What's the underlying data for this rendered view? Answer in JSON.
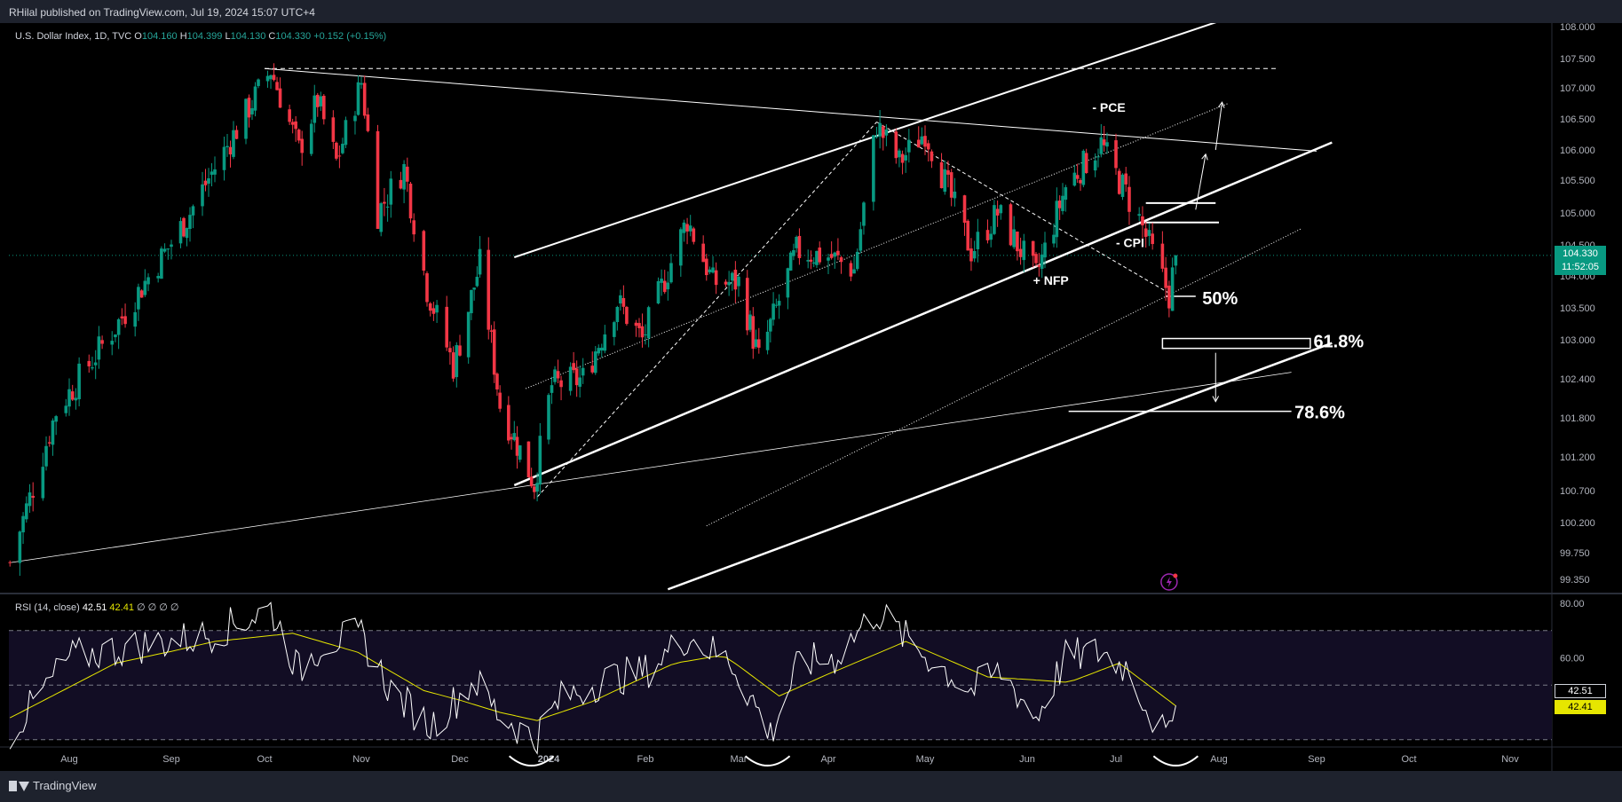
{
  "header": {
    "publisher": "RHilal published on TradingView.com, Jul 19, 2024 15:07 UTC+4"
  },
  "footer": {
    "brand": "TradingView"
  },
  "legend": {
    "symbol": "U.S. Dollar Index, 1D, TVC",
    "open_label": "O",
    "open": "104.160",
    "high_label": "H",
    "high": "104.399",
    "low_label": "L",
    "low": "104.130",
    "close_label": "C",
    "close": "104.330",
    "change": "+0.152 (+0.15%)"
  },
  "price_badge": {
    "price": "104.330",
    "countdown": "11:52:05"
  },
  "rsi_legend": {
    "name": "RSI (14, close)",
    "rsi": "42.51",
    "ma": "42.41",
    "extras": "∅ ∅ ∅ ∅"
  },
  "rsi_badges": {
    "rsi": "42.51",
    "ma": "42.41"
  },
  "annotations": {
    "pce": "- PCE",
    "cpi": "- CPI",
    "nfp": "+ NFP",
    "fib50": "50%",
    "fib618": "61.8%",
    "fib786": "78.6%"
  },
  "colors": {
    "up": "#089981",
    "down": "#f23645",
    "rsi": "#ffffff",
    "rsi_ma": "#e6e600",
    "background": "#000000",
    "panel": "#1e222d"
  },
  "chart_data": [
    {
      "type": "candlestick",
      "title": "U.S. Dollar Index, 1D, TVC",
      "x_ticks": [
        "Aug",
        "Sep",
        "Oct",
        "Nov",
        "Dec",
        "2024",
        "Feb",
        "Mar",
        "Apr",
        "May",
        "Jun",
        "Jul",
        "Aug",
        "Sep",
        "Oct",
        "Nov"
      ],
      "y_ticks": [
        "108.000",
        "107.500",
        "107.000",
        "106.500",
        "106.000",
        "105.500",
        "105.000",
        "104.500",
        "104.000",
        "103.500",
        "103.000",
        "102.400",
        "101.800",
        "101.200",
        "100.700",
        "100.200",
        "99.750",
        "99.350"
      ],
      "ylim": [
        99.2,
        108.0
      ],
      "last_price": 104.33,
      "pivots": [
        {
          "date": "2023-07-14",
          "value": 99.6
        },
        {
          "date": "2023-07-28",
          "value": 101.9
        },
        {
          "date": "2023-08-15",
          "value": 103.2
        },
        {
          "date": "2023-09-07",
          "value": 105.0
        },
        {
          "date": "2023-10-03",
          "value": 107.3
        },
        {
          "date": "2023-10-12",
          "value": 106.0
        },
        {
          "date": "2023-10-18",
          "value": 106.8
        },
        {
          "date": "2023-10-24",
          "value": 105.8
        },
        {
          "date": "2023-11-01",
          "value": 107.1
        },
        {
          "date": "2023-11-06",
          "value": 105.0
        },
        {
          "date": "2023-11-14",
          "value": 105.7
        },
        {
          "date": "2023-11-21",
          "value": 103.8
        },
        {
          "date": "2023-11-29",
          "value": 102.6
        },
        {
          "date": "2023-12-08",
          "value": 104.2
        },
        {
          "date": "2023-12-15",
          "value": 102.0
        },
        {
          "date": "2023-12-27",
          "value": 100.8
        },
        {
          "date": "2024-01-02",
          "value": 102.3
        },
        {
          "date": "2024-01-12",
          "value": 102.4
        },
        {
          "date": "2024-01-23",
          "value": 103.6
        },
        {
          "date": "2024-01-31",
          "value": 103.0
        },
        {
          "date": "2024-02-14",
          "value": 104.9
        },
        {
          "date": "2024-02-22",
          "value": 103.9
        },
        {
          "date": "2024-03-01",
          "value": 103.9
        },
        {
          "date": "2024-03-08",
          "value": 102.7
        },
        {
          "date": "2024-03-21",
          "value": 104.4
        },
        {
          "date": "2024-04-02",
          "value": 104.3
        },
        {
          "date": "2024-04-09",
          "value": 104.1
        },
        {
          "date": "2024-04-16",
          "value": 106.4
        },
        {
          "date": "2024-04-23",
          "value": 105.8
        },
        {
          "date": "2024-05-01",
          "value": 106.3
        },
        {
          "date": "2024-05-15",
          "value": 104.4
        },
        {
          "date": "2024-05-23",
          "value": 105.0
        },
        {
          "date": "2024-06-04",
          "value": 104.0
        },
        {
          "date": "2024-06-14",
          "value": 105.4
        },
        {
          "date": "2024-06-26",
          "value": 106.1
        },
        {
          "date": "2024-07-08",
          "value": 104.9
        },
        {
          "date": "2024-07-17",
          "value": 103.7
        },
        {
          "date": "2024-07-19",
          "value": 104.33
        }
      ]
    },
    {
      "type": "line",
      "title": "RSI (14, close)",
      "y_ticks": [
        "80.00",
        "60.00"
      ],
      "ylim": [
        15,
        85
      ],
      "bands": [
        70,
        50,
        30
      ],
      "rsi_pivots": [
        {
          "date": "2023-07-14",
          "value": 32
        },
        {
          "date": "2023-08-01",
          "value": 60
        },
        {
          "date": "2023-08-25",
          "value": 65
        },
        {
          "date": "2023-09-12",
          "value": 68
        },
        {
          "date": "2023-10-03",
          "value": 78
        },
        {
          "date": "2023-10-12",
          "value": 55
        },
        {
          "date": "2023-10-20",
          "value": 66
        },
        {
          "date": "2023-11-01",
          "value": 68
        },
        {
          "date": "2023-11-10",
          "value": 48
        },
        {
          "date": "2023-11-22",
          "value": 35
        },
        {
          "date": "2023-12-06",
          "value": 52
        },
        {
          "date": "2023-12-14",
          "value": 40
        },
        {
          "date": "2023-12-27",
          "value": 30
        },
        {
          "date": "2024-01-05",
          "value": 45
        },
        {
          "date": "2024-01-19",
          "value": 52
        },
        {
          "date": "2024-02-01",
          "value": 55
        },
        {
          "date": "2024-02-14",
          "value": 68
        },
        {
          "date": "2024-02-28",
          "value": 58
        },
        {
          "date": "2024-03-12",
          "value": 32
        },
        {
          "date": "2024-03-22",
          "value": 58
        },
        {
          "date": "2024-04-03",
          "value": 60
        },
        {
          "date": "2024-04-16",
          "value": 77
        },
        {
          "date": "2024-04-26",
          "value": 66
        },
        {
          "date": "2024-05-15",
          "value": 48
        },
        {
          "date": "2024-05-24",
          "value": 55
        },
        {
          "date": "2024-06-04",
          "value": 38
        },
        {
          "date": "2024-06-14",
          "value": 60
        },
        {
          "date": "2024-06-26",
          "value": 62
        },
        {
          "date": "2024-07-05",
          "value": 56
        },
        {
          "date": "2024-07-12",
          "value": 38
        },
        {
          "date": "2024-07-17",
          "value": 30
        },
        {
          "date": "2024-07-19",
          "value": 42.51
        }
      ],
      "ma_pivots": [
        {
          "date": "2023-07-14",
          "value": 38
        },
        {
          "date": "2023-08-15",
          "value": 58
        },
        {
          "date": "2023-09-15",
          "value": 66
        },
        {
          "date": "2023-10-10",
          "value": 69
        },
        {
          "date": "2023-10-31",
          "value": 62
        },
        {
          "date": "2023-11-20",
          "value": 48
        },
        {
          "date": "2023-12-15",
          "value": 40
        },
        {
          "date": "2023-12-28",
          "value": 37
        },
        {
          "date": "2024-01-15",
          "value": 44
        },
        {
          "date": "2024-02-10",
          "value": 58
        },
        {
          "date": "2024-02-25",
          "value": 61
        },
        {
          "date": "2024-03-15",
          "value": 46
        },
        {
          "date": "2024-04-05",
          "value": 56
        },
        {
          "date": "2024-04-25",
          "value": 66
        },
        {
          "date": "2024-05-20",
          "value": 53
        },
        {
          "date": "2024-06-15",
          "value": 51
        },
        {
          "date": "2024-07-02",
          "value": 58
        },
        {
          "date": "2024-07-19",
          "value": 42.41
        }
      ]
    }
  ]
}
